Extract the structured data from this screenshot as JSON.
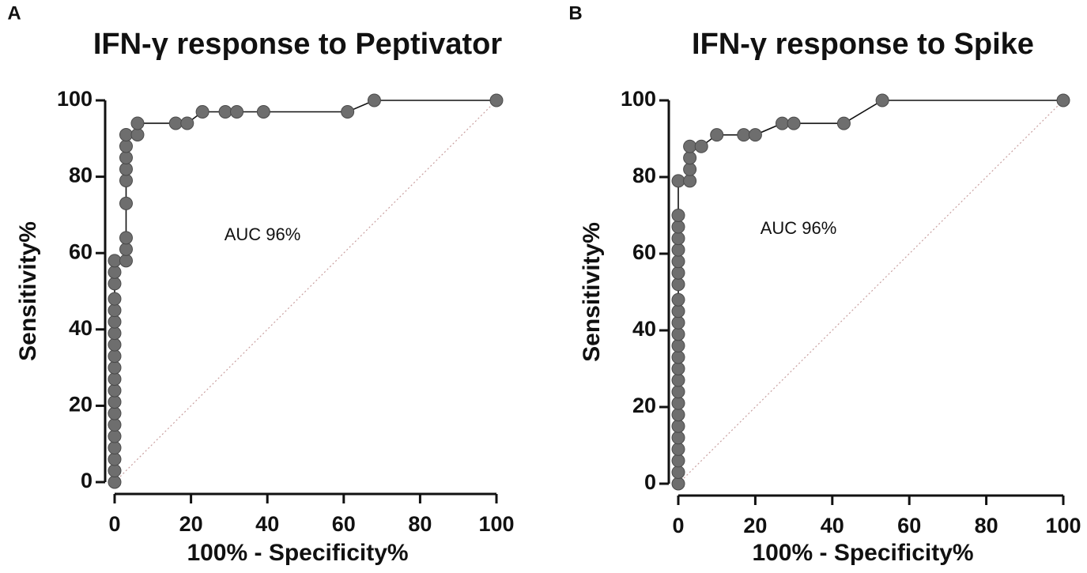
{
  "chart_data": [
    {
      "type": "line",
      "panel": "A",
      "title": "IFN-γ response to Peptivator",
      "xlabel": "100% - Specificity%",
      "ylabel": "Sensitivity%",
      "annotation": "AUC 96%",
      "x": [
        0,
        0,
        0,
        0,
        0,
        0,
        0,
        0,
        0,
        0,
        0,
        0,
        0,
        0,
        0,
        0,
        0,
        0,
        0,
        0,
        3,
        3,
        3,
        3,
        3,
        3,
        3,
        3,
        3,
        6,
        6,
        16,
        19,
        23,
        29,
        32,
        39,
        61,
        68,
        100
      ],
      "values": [
        0,
        3,
        6,
        9,
        12,
        15,
        18,
        21,
        24,
        27,
        30,
        33,
        36,
        39,
        42,
        45,
        48,
        52,
        55,
        58,
        58,
        61,
        64,
        73,
        79,
        82,
        85,
        88,
        91,
        91,
        94,
        94,
        94,
        97,
        97,
        97,
        97,
        97,
        100,
        100
      ],
      "color": "#6e6e6e",
      "xlim": [
        0,
        100
      ],
      "ylim": [
        0,
        100
      ],
      "xticks": [
        0,
        20,
        40,
        60,
        80,
        100
      ],
      "yticks": [
        0,
        20,
        40,
        60,
        80,
        100
      ]
    },
    {
      "type": "line",
      "panel": "B",
      "title": "IFN-γ response to Spike",
      "xlabel": "100% - Specificity%",
      "ylabel": "Sensitivity%",
      "annotation": "AUC 96%",
      "x": [
        0,
        0,
        0,
        0,
        0,
        0,
        0,
        0,
        0,
        0,
        0,
        0,
        0,
        0,
        0,
        0,
        0,
        0,
        0,
        0,
        0,
        0,
        0,
        0,
        0,
        3,
        3,
        3,
        3,
        6,
        10,
        17,
        20,
        27,
        30,
        43,
        53,
        100
      ],
      "values": [
        0,
        3,
        6,
        9,
        12,
        15,
        18,
        21,
        24,
        27,
        30,
        33,
        36,
        39,
        42,
        45,
        48,
        52,
        55,
        58,
        61,
        64,
        67,
        70,
        79,
        79,
        82,
        85,
        88,
        88,
        91,
        91,
        91,
        94,
        94,
        94,
        100,
        100
      ],
      "color": "#6e6e6e",
      "xlim": [
        0,
        100
      ],
      "ylim": [
        0,
        100
      ],
      "xticks": [
        0,
        20,
        40,
        60,
        80,
        100
      ],
      "yticks": [
        0,
        20,
        40,
        60,
        80,
        100
      ]
    }
  ]
}
